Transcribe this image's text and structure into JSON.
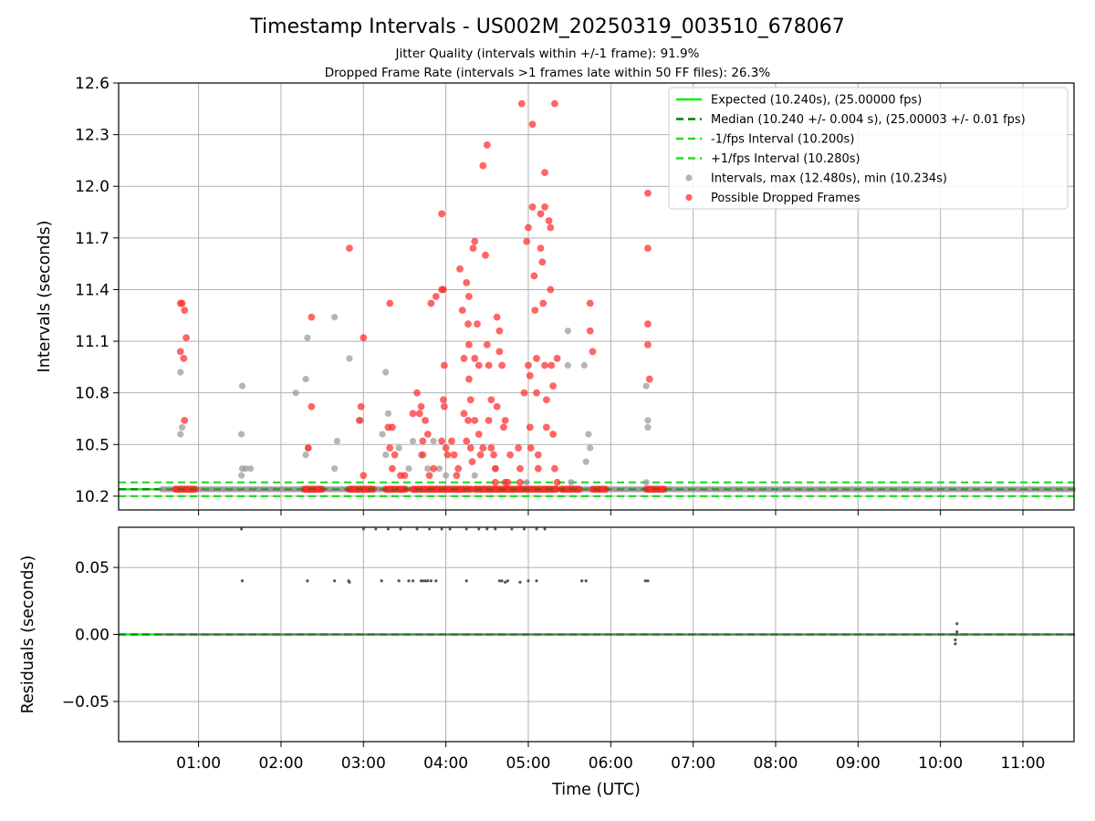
{
  "title": "Timestamp Intervals - US002M_20250319_003510_678067",
  "subtitle_1": "Jitter Quality (intervals within +/-1 frame): 91.9%",
  "subtitle_2": "Dropped Frame Rate (intervals >1 frames late within 50 FF files): 26.3%",
  "colors": {
    "expected": "#00ee00",
    "median": "#008000",
    "interval_bounds": "#22dd22",
    "normal_points": "#999999",
    "dropped_points": "#ff2a2a",
    "residual_points": "#555555",
    "grid": "#b0b0b0"
  },
  "chart_data": [
    {
      "type": "scatter",
      "panel": "top",
      "ylabel": "Intervals (seconds)",
      "ylim": [
        10.12,
        12.6
      ],
      "xlim_hours": [
        0.03,
        11.62
      ],
      "y_ticks": [
        "10.2",
        "10.5",
        "10.8",
        "11.1",
        "11.4",
        "11.7",
        "12.0",
        "12.3",
        "12.6"
      ],
      "grid": true,
      "legend_position": "top-right",
      "reference_lines": [
        {
          "name": "Expected (10.240s), (25.00000 fps)",
          "y": 10.24,
          "style": "solid",
          "color_key": "expected"
        },
        {
          "name": "Median (10.240 +/- 0.004 s), (25.00003 +/- 0.01 fps)",
          "y": 10.24,
          "style": "dashed",
          "color_key": "median"
        },
        {
          "name": "-1/fps Interval (10.200s)",
          "y": 10.2,
          "style": "dashed",
          "color_key": "interval_bounds"
        },
        {
          "name": "+1/fps Interval (10.280s)",
          "y": 10.28,
          "style": "dashed",
          "color_key": "interval_bounds"
        }
      ],
      "series": [
        {
          "name": "Intervals, max (12.480s), min (10.234s)",
          "color_key": "normal_points",
          "points": [
            [
              0.78,
              10.92
            ],
            [
              0.78,
              10.56
            ],
            [
              0.8,
              10.6
            ],
            [
              1.53,
              10.84
            ],
            [
              1.52,
              10.56
            ],
            [
              1.53,
              10.36
            ],
            [
              1.52,
              10.32
            ],
            [
              1.57,
              10.36
            ],
            [
              1.63,
              10.36
            ],
            [
              2.18,
              10.8
            ],
            [
              2.3,
              10.88
            ],
            [
              2.32,
              11.12
            ],
            [
              2.3,
              10.44
            ],
            [
              2.33,
              10.48
            ],
            [
              2.65,
              11.24
            ],
            [
              2.68,
              10.52
            ],
            [
              2.65,
              10.36
            ],
            [
              2.83,
              11.0
            ],
            [
              2.97,
              10.64
            ],
            [
              3.23,
              10.56
            ],
            [
              3.27,
              10.92
            ],
            [
              3.27,
              10.44
            ],
            [
              3.3,
              10.68
            ],
            [
              3.43,
              10.48
            ],
            [
              3.55,
              10.36
            ],
            [
              3.6,
              10.52
            ],
            [
              3.7,
              10.44
            ],
            [
              3.78,
              10.36
            ],
            [
              3.85,
              10.52
            ],
            [
              3.92,
              10.36
            ],
            [
              4.0,
              10.32
            ],
            [
              4.35,
              10.32
            ],
            [
              4.6,
              10.36
            ],
            [
              4.98,
              10.28
            ],
            [
              5.48,
              11.16
            ],
            [
              5.48,
              10.96
            ],
            [
              5.52,
              10.28
            ],
            [
              5.68,
              10.96
            ],
            [
              5.73,
              10.56
            ],
            [
              5.75,
              10.48
            ],
            [
              5.7,
              10.4
            ],
            [
              6.43,
              10.84
            ],
            [
              6.45,
              10.64
            ],
            [
              6.45,
              10.6
            ],
            [
              6.43,
              10.28
            ]
          ]
        },
        {
          "name": "Possible Dropped Frames",
          "color_key": "dropped_points",
          "points": [
            [
              0.78,
              11.32
            ],
            [
              0.8,
              11.32
            ],
            [
              0.83,
              11.28
            ],
            [
              0.85,
              11.12
            ],
            [
              0.78,
              11.04
            ],
            [
              0.82,
              11.0
            ],
            [
              0.83,
              10.64
            ],
            [
              2.33,
              10.48
            ],
            [
              2.37,
              11.24
            ],
            [
              2.37,
              10.72
            ],
            [
              2.83,
              11.64
            ],
            [
              2.97,
              10.72
            ],
            [
              2.95,
              10.64
            ],
            [
              3.0,
              11.12
            ],
            [
              3.0,
              10.32
            ],
            [
              3.32,
              11.32
            ],
            [
              3.3,
              10.6
            ],
            [
              3.35,
              10.6
            ],
            [
              3.32,
              10.48
            ],
            [
              3.35,
              10.36
            ],
            [
              3.38,
              10.44
            ],
            [
              3.45,
              10.32
            ],
            [
              3.5,
              10.32
            ],
            [
              3.6,
              10.68
            ],
            [
              3.65,
              10.8
            ],
            [
              3.68,
              10.68
            ],
            [
              3.7,
              10.72
            ],
            [
              3.75,
              10.64
            ],
            [
              3.72,
              10.52
            ],
            [
              3.78,
              10.56
            ],
            [
              3.72,
              10.44
            ],
            [
              3.8,
              10.32
            ],
            [
              3.85,
              10.36
            ],
            [
              3.82,
              11.32
            ],
            [
              3.88,
              11.36
            ],
            [
              3.95,
              11.4
            ],
            [
              3.97,
              11.4
            ],
            [
              3.95,
              11.84
            ],
            [
              3.98,
              10.96
            ],
            [
              3.97,
              10.76
            ],
            [
              3.98,
              10.72
            ],
            [
              3.95,
              10.52
            ],
            [
              4.0,
              10.48
            ],
            [
              4.02,
              10.44
            ],
            [
              4.07,
              10.52
            ],
            [
              4.1,
              10.44
            ],
            [
              4.13,
              10.32
            ],
            [
              4.15,
              10.36
            ],
            [
              4.17,
              11.52
            ],
            [
              4.2,
              11.28
            ],
            [
              4.22,
              11.0
            ],
            [
              4.22,
              10.68
            ],
            [
              4.25,
              11.44
            ],
            [
              4.28,
              11.36
            ],
            [
              4.27,
              11.2
            ],
            [
              4.28,
              11.08
            ],
            [
              4.28,
              10.88
            ],
            [
              4.3,
              10.76
            ],
            [
              4.27,
              10.64
            ],
            [
              4.25,
              10.52
            ],
            [
              4.3,
              10.48
            ],
            [
              4.32,
              10.4
            ],
            [
              4.33,
              11.64
            ],
            [
              4.35,
              11.68
            ],
            [
              4.35,
              11.0
            ],
            [
              4.35,
              10.64
            ],
            [
              4.38,
              11.2
            ],
            [
              4.4,
              10.96
            ],
            [
              4.4,
              10.56
            ],
            [
              4.42,
              10.44
            ],
            [
              4.45,
              10.48
            ],
            [
              4.45,
              12.12
            ],
            [
              4.48,
              11.6
            ],
            [
              4.5,
              12.24
            ],
            [
              4.5,
              11.08
            ],
            [
              4.52,
              10.96
            ],
            [
              4.52,
              10.64
            ],
            [
              4.55,
              10.76
            ],
            [
              4.55,
              10.48
            ],
            [
              4.58,
              10.44
            ],
            [
              4.6,
              10.36
            ],
            [
              4.6,
              10.28
            ],
            [
              4.62,
              10.72
            ],
            [
              4.62,
              11.24
            ],
            [
              4.65,
              11.16
            ],
            [
              4.65,
              11.04
            ],
            [
              4.68,
              10.96
            ],
            [
              4.7,
              10.6
            ],
            [
              4.72,
              10.64
            ],
            [
              4.72,
              10.28
            ],
            [
              4.75,
              10.28
            ],
            [
              4.78,
              10.44
            ],
            [
              4.88,
              10.48
            ],
            [
              4.9,
              10.36
            ],
            [
              4.9,
              10.28
            ],
            [
              4.92,
              12.48
            ],
            [
              4.95,
              10.8
            ],
            [
              4.98,
              11.68
            ],
            [
              5.0,
              11.76
            ],
            [
              5.0,
              10.96
            ],
            [
              5.02,
              10.9
            ],
            [
              5.02,
              10.6
            ],
            [
              5.03,
              10.48
            ],
            [
              5.05,
              11.88
            ],
            [
              5.05,
              12.36
            ],
            [
              5.07,
              11.48
            ],
            [
              5.08,
              11.28
            ],
            [
              5.1,
              11.0
            ],
            [
              5.1,
              10.8
            ],
            [
              5.12,
              10.44
            ],
            [
              5.12,
              10.36
            ],
            [
              5.15,
              11.84
            ],
            [
              5.15,
              11.64
            ],
            [
              5.17,
              11.56
            ],
            [
              5.18,
              11.32
            ],
            [
              5.2,
              12.08
            ],
            [
              5.2,
              11.88
            ],
            [
              5.2,
              10.96
            ],
            [
              5.22,
              10.76
            ],
            [
              5.22,
              10.6
            ],
            [
              5.25,
              11.8
            ],
            [
              5.27,
              11.76
            ],
            [
              5.27,
              11.4
            ],
            [
              5.28,
              10.96
            ],
            [
              5.3,
              10.84
            ],
            [
              5.3,
              10.56
            ],
            [
              5.32,
              12.48
            ],
            [
              5.32,
              10.36
            ],
            [
              5.35,
              10.28
            ],
            [
              5.35,
              11.0
            ],
            [
              5.75,
              11.32
            ],
            [
              5.75,
              11.16
            ],
            [
              5.78,
              11.04
            ],
            [
              6.45,
              11.96
            ],
            [
              6.45,
              11.64
            ],
            [
              6.45,
              11.2
            ],
            [
              6.45,
              11.08
            ],
            [
              6.47,
              10.88
            ]
          ]
        }
      ],
      "dropped_baseline_clusters_hours": [
        [
          0.72,
          0.98
        ],
        [
          2.28,
          2.5
        ],
        [
          2.82,
          3.13
        ],
        [
          3.27,
          3.52
        ],
        [
          3.6,
          4.0
        ],
        [
          4.0,
          4.3
        ],
        [
          4.35,
          4.95
        ],
        [
          4.98,
          5.35
        ],
        [
          5.4,
          5.62
        ],
        [
          5.78,
          5.95
        ],
        [
          6.43,
          6.65
        ]
      ],
      "normal_baseline_range_hours": [
        0.55,
        11.62
      ]
    },
    {
      "type": "scatter",
      "panel": "bottom",
      "xlabel": "Time (UTC)",
      "ylabel": "Residuals (seconds)",
      "ylim": [
        -0.08,
        0.08
      ],
      "xlim_hours": [
        0.03,
        11.62
      ],
      "y_ticks": [
        "0.05",
        "0.00",
        "−0.05"
      ],
      "x_ticks": [
        "01:00",
        "02:00",
        "03:00",
        "04:00",
        "05:00",
        "06:00",
        "07:00",
        "08:00",
        "09:00",
        "10:00",
        "11:00"
      ],
      "grid": true,
      "reference_lines": [
        {
          "y": 0.0,
          "style": "solid",
          "color_key": "expected"
        },
        {
          "y": 0.0,
          "style": "dashed",
          "color_key": "median"
        }
      ],
      "series": [
        {
          "color_key": "residual_points",
          "points": [
            [
              1.53,
              0.04
            ],
            [
              2.32,
              0.04
            ],
            [
              2.65,
              0.04
            ],
            [
              2.82,
              0.04
            ],
            [
              2.83,
              0.039
            ],
            [
              3.22,
              0.04
            ],
            [
              3.43,
              0.04
            ],
            [
              3.55,
              0.04
            ],
            [
              3.6,
              0.04
            ],
            [
              3.7,
              0.04
            ],
            [
              3.72,
              0.04
            ],
            [
              3.75,
              0.04
            ],
            [
              3.78,
              0.04
            ],
            [
              3.82,
              0.04
            ],
            [
              3.88,
              0.04
            ],
            [
              4.25,
              0.04
            ],
            [
              4.65,
              0.04
            ],
            [
              4.68,
              0.04
            ],
            [
              4.72,
              0.039
            ],
            [
              4.75,
              0.04
            ],
            [
              4.9,
              0.039
            ],
            [
              5.0,
              0.04
            ],
            [
              5.1,
              0.04
            ],
            [
              5.65,
              0.04
            ],
            [
              5.7,
              0.04
            ],
            [
              6.42,
              0.04
            ],
            [
              6.45,
              0.04
            ],
            [
              10.2,
              0.008
            ],
            [
              10.2,
              0.002
            ],
            [
              10.18,
              -0.004
            ],
            [
              10.18,
              -0.007
            ],
            [
              10.2,
              0.0
            ]
          ]
        }
      ],
      "clipped_top_points_hours": [
        1.52,
        3.0,
        3.15,
        3.3,
        3.45,
        3.65,
        3.8,
        3.95,
        4.05,
        4.25,
        4.4,
        4.5,
        4.6,
        4.8,
        4.95,
        5.1,
        5.2
      ]
    }
  ]
}
